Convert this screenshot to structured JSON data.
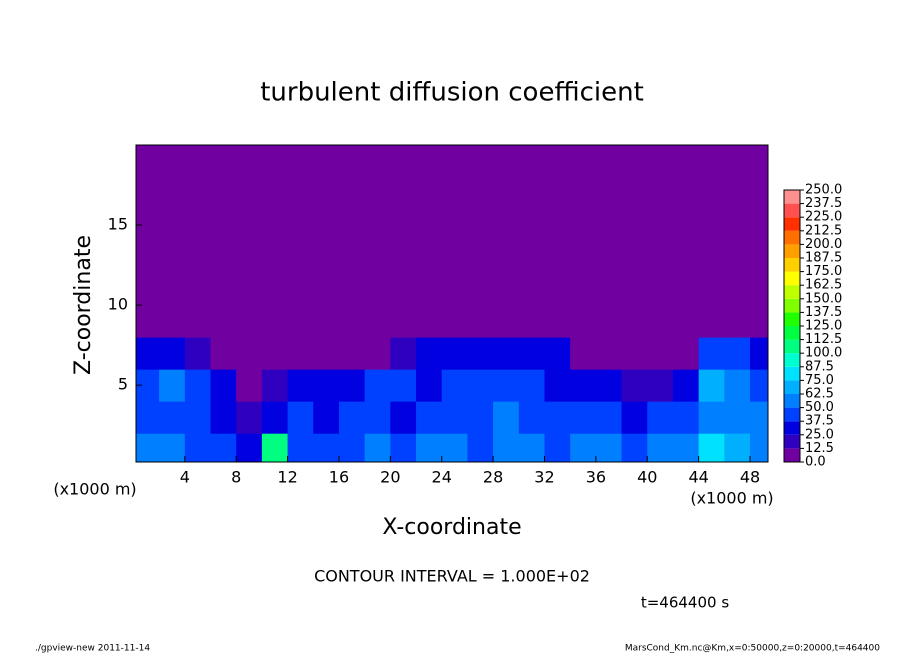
{
  "chart_data": {
    "type": "heatmap",
    "title": "turbulent diffusion coefficient",
    "x_label": "X-coordinate",
    "y_label": "Z-coordinate",
    "x_unit": "(x1000 m)",
    "y_unit": "(x1000 m)",
    "annotation": "CONTOUR INTERVAL = 1.000E+02",
    "time_label": "t=464400 s",
    "footer_left": "./gpview-new  2011-11-14",
    "footer_right": "MarsCond_Km.nc@Km,x=0:50000,z=0:20000,t=464400",
    "xlim": [
      0.2,
      49.4
    ],
    "ylim": [
      0.2,
      20
    ],
    "xticks": [
      4,
      8,
      12,
      16,
      20,
      24,
      28,
      32,
      36,
      40,
      44,
      48
    ],
    "yticks": [
      5,
      10,
      15
    ],
    "x": [
      1,
      3,
      5,
      7,
      9,
      11,
      13,
      15,
      17,
      19,
      21,
      23,
      25,
      27,
      29,
      31,
      33,
      35,
      37,
      39,
      41,
      43,
      45,
      47,
      49
    ],
    "y": [
      1,
      3,
      5,
      7,
      9,
      11,
      13,
      15,
      17,
      19
    ],
    "z": [
      [
        55,
        50,
        45,
        40,
        30,
        100,
        45,
        40,
        45,
        50,
        45,
        55,
        50,
        45,
        60,
        50,
        45,
        55,
        50,
        45,
        55,
        60,
        75,
        65,
        60
      ],
      [
        45,
        45,
        40,
        30,
        20,
        30,
        40,
        35,
        40,
        45,
        35,
        40,
        45,
        40,
        50,
        45,
        40,
        45,
        40,
        35,
        40,
        45,
        60,
        55,
        50
      ],
      [
        45,
        50,
        45,
        35,
        5,
        15,
        25,
        30,
        30,
        40,
        45,
        35,
        40,
        45,
        40,
        45,
        35,
        30,
        25,
        15,
        20,
        35,
        70,
        60,
        45
      ],
      [
        35,
        30,
        15,
        5,
        0,
        5,
        5,
        10,
        5,
        10,
        20,
        25,
        30,
        25,
        30,
        35,
        25,
        10,
        5,
        5,
        5,
        10,
        40,
        45,
        35
      ],
      [
        10,
        5,
        0,
        0,
        0,
        0,
        0,
        0,
        0,
        0,
        0,
        0,
        0,
        0,
        0,
        0,
        0,
        0,
        0,
        0,
        0,
        0,
        0,
        0,
        0
      ],
      [
        0,
        0,
        0,
        0,
        0,
        0,
        0,
        0,
        0,
        0,
        0,
        0,
        0,
        0,
        0,
        0,
        0,
        0,
        0,
        0,
        0,
        0,
        0,
        0,
        0
      ],
      [
        0,
        0,
        0,
        0,
        0,
        0,
        0,
        0,
        0,
        0,
        0,
        0,
        0,
        0,
        0,
        0,
        0,
        0,
        0,
        0,
        0,
        0,
        0,
        0,
        0
      ],
      [
        0,
        0,
        0,
        0,
        0,
        0,
        0,
        0,
        0,
        0,
        0,
        0,
        0,
        0,
        0,
        0,
        0,
        0,
        0,
        0,
        0,
        0,
        0,
        0,
        0
      ],
      [
        0,
        0,
        0,
        0,
        0,
        0,
        0,
        0,
        0,
        0,
        0,
        0,
        0,
        0,
        0,
        0,
        0,
        0,
        0,
        0,
        0,
        0,
        0,
        0,
        0
      ],
      [
        0,
        0,
        0,
        0,
        0,
        0,
        0,
        0,
        0,
        0,
        0,
        0,
        0,
        0,
        0,
        0,
        0,
        0,
        0,
        0,
        0,
        0,
        0,
        0,
        0
      ]
    ],
    "levels": [
      {
        "value": 0,
        "label": "0.0"
      },
      {
        "value": 12.5,
        "label": "12.5"
      },
      {
        "value": 25,
        "label": "25.0"
      },
      {
        "value": 37.5,
        "label": "37.5"
      },
      {
        "value": 50,
        "label": "50.0"
      },
      {
        "value": 62.5,
        "label": "62.5"
      },
      {
        "value": 75,
        "label": "75.0"
      },
      {
        "value": 87.5,
        "label": "87.5"
      },
      {
        "value": 100,
        "label": "100.0"
      },
      {
        "value": 112.5,
        "label": "112.5"
      },
      {
        "value": 125,
        "label": "125.0"
      },
      {
        "value": 137.5,
        "label": "137.5"
      },
      {
        "value": 150,
        "label": "150.0"
      },
      {
        "value": 162.5,
        "label": "162.5"
      },
      {
        "value": 175,
        "label": "175.0"
      },
      {
        "value": 187.5,
        "label": "187.5"
      },
      {
        "value": 200,
        "label": "200.0"
      },
      {
        "value": 212.5,
        "label": "212.5"
      },
      {
        "value": 225,
        "label": "225.0"
      },
      {
        "value": 237.5,
        "label": "237.5"
      },
      {
        "value": 250,
        "label": "250.0"
      }
    ],
    "colors": [
      "#7000a0",
      "#3000c0",
      "#0000e0",
      "#0040ff",
      "#0080ff",
      "#00b0ff",
      "#00e0ff",
      "#00ffd0",
      "#00ff80",
      "#00ff40",
      "#20ff00",
      "#80ff00",
      "#c0ff00",
      "#ffff00",
      "#ffd000",
      "#ffa000",
      "#ff7000",
      "#ff3000",
      "#ff5050",
      "#ff9090"
    ]
  }
}
